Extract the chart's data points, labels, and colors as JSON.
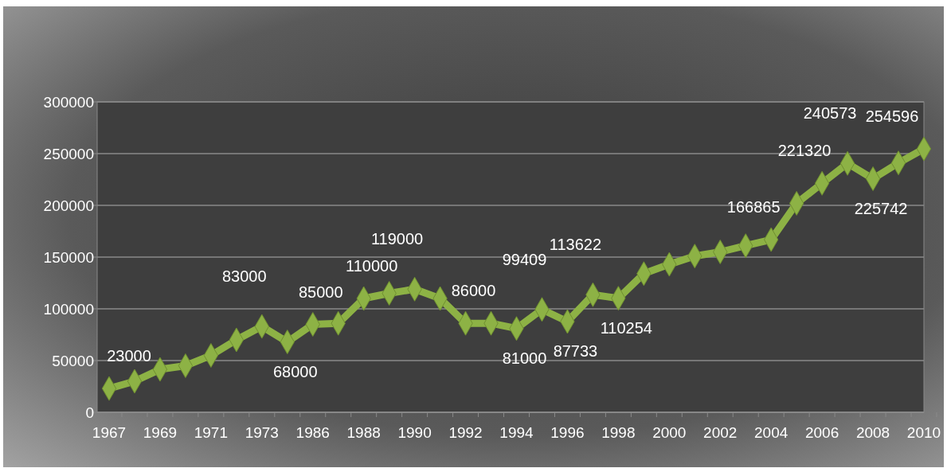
{
  "chart_data": {
    "type": "line",
    "categories": [
      "1967",
      null,
      "1969",
      null,
      "1971",
      null,
      "1973",
      null,
      "1986",
      null,
      "1988",
      null,
      "1990",
      null,
      "1992",
      null,
      "1994",
      null,
      "1996",
      null,
      "1998",
      null,
      "2000",
      null,
      "2002",
      null,
      "2004",
      null,
      "2006",
      null,
      "2008",
      null,
      "2010"
    ],
    "series": [
      {
        "color": "#8db245",
        "values": [
          23000,
          30000,
          41500,
          45000,
          55000,
          70000,
          83000,
          68000,
          85000,
          86000,
          110000,
          115000,
          119000,
          110000,
          86000,
          86000,
          81000,
          99409,
          87733,
          113622,
          110254,
          134000,
          143000,
          151000,
          155000,
          161000,
          166865,
          202000,
          221320,
          240573,
          225742,
          241000,
          254596
        ],
        "value_labels": [
          "23000",
          null,
          null,
          null,
          null,
          null,
          "83000",
          "68000",
          "85000",
          null,
          "110000",
          null,
          "119000",
          null,
          "86000",
          null,
          "81000",
          "99409",
          "87733",
          "113622",
          "110254",
          null,
          null,
          null,
          null,
          null,
          "166865",
          null,
          "221320",
          "240573",
          "225742",
          null,
          "254596"
        ]
      }
    ],
    "ylim": [
      0,
      300000
    ],
    "yticks": [
      0,
      50000,
      100000,
      150000,
      200000,
      250000,
      300000
    ],
    "grid": "y",
    "marker": "diamond",
    "line_style": "solid"
  }
}
